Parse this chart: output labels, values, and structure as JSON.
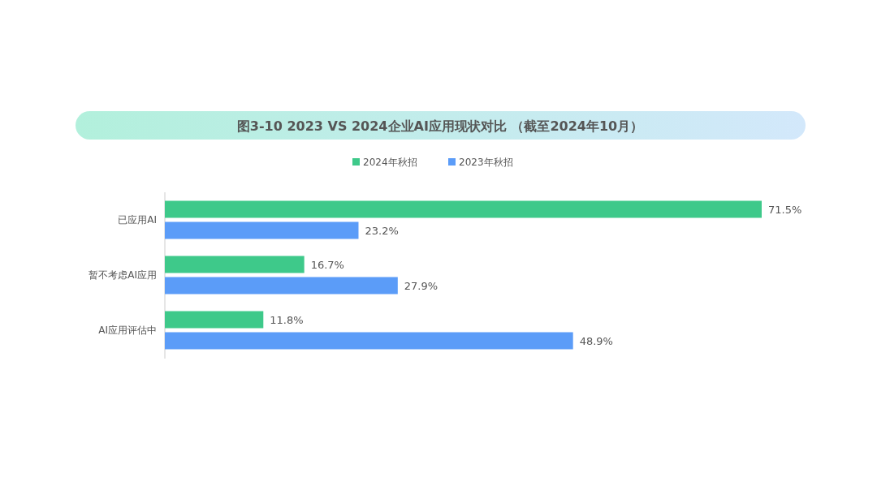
{
  "chart_data": {
    "type": "bar",
    "orientation": "horizontal",
    "title": "图3-10  2023 VS 2024企业AI应用现状对比 （截至2024年10月）",
    "categories": [
      "已应用AI",
      "暂不考虑AI应用",
      "AI应用评估中"
    ],
    "series": [
      {
        "name": "2024年秋招",
        "color": "#3ec98a",
        "values": [
          71.5,
          16.7,
          11.8
        ],
        "value_labels": [
          "71.5%",
          "16.7%",
          "11.8%"
        ]
      },
      {
        "name": "2023年秋招",
        "color": "#5b9cf8",
        "values": [
          23.2,
          27.9,
          48.9
        ],
        "value_labels": [
          "23.2%",
          "27.9%",
          "48.9%"
        ]
      }
    ],
    "legend": "top"
  }
}
